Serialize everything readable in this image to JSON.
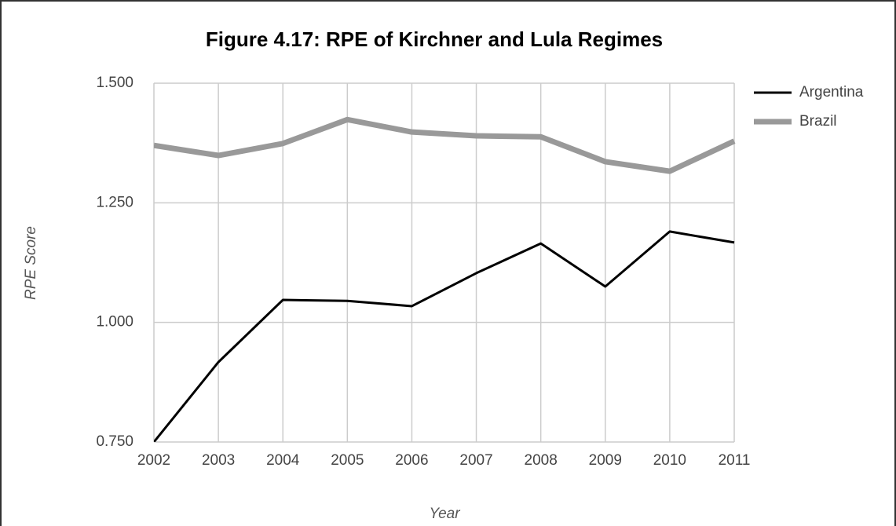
{
  "chart_data": {
    "type": "line",
    "title": "Figure 4.17: RPE of Kirchner and Lula Regimes",
    "x_label": "Year",
    "y_label": "RPE Score",
    "x": [
      2002,
      2003,
      2004,
      2005,
      2006,
      2007,
      2008,
      2009,
      2010,
      2011
    ],
    "xlim": [
      2002,
      2011
    ],
    "xticks": [
      2002,
      2003,
      2004,
      2005,
      2006,
      2007,
      2008,
      2009,
      2010,
      2011
    ],
    "ylim": [
      0.75,
      1.5
    ],
    "yticks": [
      {
        "value": 0.75,
        "label": "0.750"
      },
      {
        "value": 1.0,
        "label": "1.000"
      },
      {
        "value": 1.25,
        "label": "1.250"
      },
      {
        "value": 1.5,
        "label": "1.500"
      }
    ],
    "grid": true,
    "legend": "right",
    "series": [
      {
        "name": "Argentina",
        "color": "#000000",
        "values": [
          0.75,
          0.917,
          1.047,
          1.045,
          1.034,
          1.103,
          1.165,
          1.075,
          1.19,
          1.167
        ]
      },
      {
        "name": "Brazil",
        "color": "#999999",
        "values": [
          1.37,
          1.349,
          1.374,
          1.424,
          1.398,
          1.39,
          1.388,
          1.336,
          1.316,
          1.379
        ]
      }
    ]
  }
}
